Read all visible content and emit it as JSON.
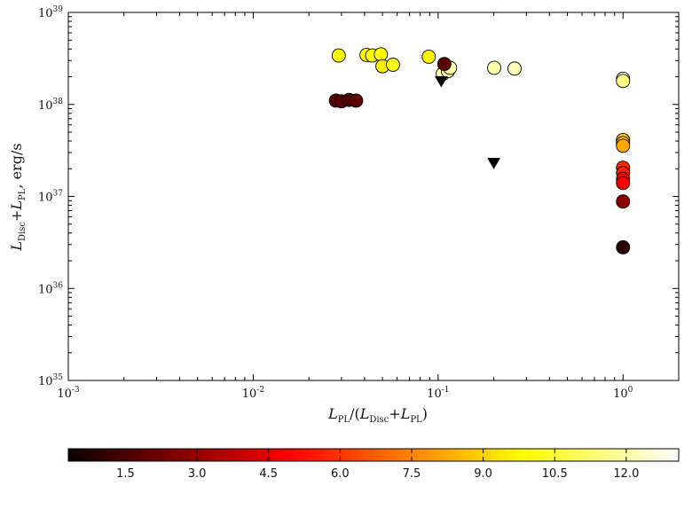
{
  "chart_data": {
    "type": "scatter",
    "title": "",
    "xlabel_parts": [
      "L",
      "PL",
      "/(",
      "L",
      "Disc",
      "+",
      "L",
      "PL",
      ")"
    ],
    "ylabel_parts": [
      "L",
      "Disc",
      "+",
      "L",
      "PL",
      ", erg/s"
    ],
    "x_scale": "log",
    "y_scale": "log",
    "xlim": [
      0.001,
      2.0
    ],
    "ylim": [
      1e+35,
      1e+39
    ],
    "x_ticks": [
      {
        "value": 0.001,
        "base": "10",
        "exp": "-3"
      },
      {
        "value": 0.01,
        "base": "10",
        "exp": "-2"
      },
      {
        "value": 0.1,
        "base": "10",
        "exp": "-1"
      },
      {
        "value": 1.0,
        "base": "10",
        "exp": "0"
      }
    ],
    "y_ticks": [
      {
        "value": 1e+35,
        "base": "10",
        "exp": "35"
      },
      {
        "value": 1e+36,
        "base": "10",
        "exp": "36"
      },
      {
        "value": 1e+37,
        "base": "10",
        "exp": "37"
      },
      {
        "value": 1e+38,
        "base": "10",
        "exp": "38"
      },
      {
        "value": 1e+39,
        "base": "10",
        "exp": "39"
      }
    ],
    "grid": false,
    "points": [
      {
        "x": 0.029,
        "y": 3.4e+38,
        "c": 9.8
      },
      {
        "x": 0.041,
        "y": 3.45e+38,
        "c": 9.8
      },
      {
        "x": 0.044,
        "y": 3.4e+38,
        "c": 10.0
      },
      {
        "x": 0.049,
        "y": 3.5e+38,
        "c": 9.8
      },
      {
        "x": 0.05,
        "y": 2.6e+38,
        "c": 9.6
      },
      {
        "x": 0.057,
        "y": 2.7e+38,
        "c": 10.2
      },
      {
        "x": 0.089,
        "y": 3.3e+38,
        "c": 9.6
      },
      {
        "x": 0.106,
        "y": 2.15e+38,
        "c": 12.0
      },
      {
        "x": 0.113,
        "y": 2.3e+38,
        "c": 12.2
      },
      {
        "x": 0.116,
        "y": 2.5e+38,
        "c": 12.0
      },
      {
        "x": 0.201,
        "y": 2.5e+38,
        "c": 12.0
      },
      {
        "x": 0.259,
        "y": 2.45e+38,
        "c": 12.2
      },
      {
        "x": 0.108,
        "y": 2.75e+38,
        "c": 1.8
      },
      {
        "x": 0.028,
        "y": 1.1e+38,
        "c": 1.6
      },
      {
        "x": 0.03,
        "y": 1.08e+38,
        "c": 1.8
      },
      {
        "x": 0.033,
        "y": 1.12e+38,
        "c": 1.7
      },
      {
        "x": 0.036,
        "y": 1.1e+38,
        "c": 1.9
      },
      {
        "x": 1.0,
        "y": 1.9e+38,
        "c": 13.0
      },
      {
        "x": 1.0,
        "y": 1.8e+38,
        "c": 11.5
      },
      {
        "x": 1.0,
        "y": 4.1e+37,
        "c": 8.8
      },
      {
        "x": 1.0,
        "y": 3.8e+37,
        "c": 8.5
      },
      {
        "x": 1.0,
        "y": 3.55e+37,
        "c": 8.2
      },
      {
        "x": 1.0,
        "y": 2.05e+37,
        "c": 5.8
      },
      {
        "x": 1.0,
        "y": 1.8e+37,
        "c": 5.5
      },
      {
        "x": 1.0,
        "y": 1.55e+37,
        "c": 5.0
      },
      {
        "x": 1.0,
        "y": 1.4e+37,
        "c": 4.8
      },
      {
        "x": 1.0,
        "y": 8.8e+36,
        "c": 2.8
      },
      {
        "x": 1.0,
        "y": 2.8e+36,
        "c": 0.9
      }
    ],
    "upper_limits": [
      {
        "x": 0.104,
        "y": 1.78e+38
      },
      {
        "x": 0.2,
        "y": 2.3e+37
      }
    ],
    "colorbar": {
      "min": 0.3,
      "max": 13.1,
      "colormap": "hot",
      "ticks": [
        "1.5",
        "3.0",
        "4.5",
        "6.0",
        "7.5",
        "9.0",
        "10.5",
        "12.0"
      ]
    },
    "colors": {
      "marker_edge": "#000000",
      "upper_limit": "#000000",
      "axes": "#000000"
    }
  }
}
